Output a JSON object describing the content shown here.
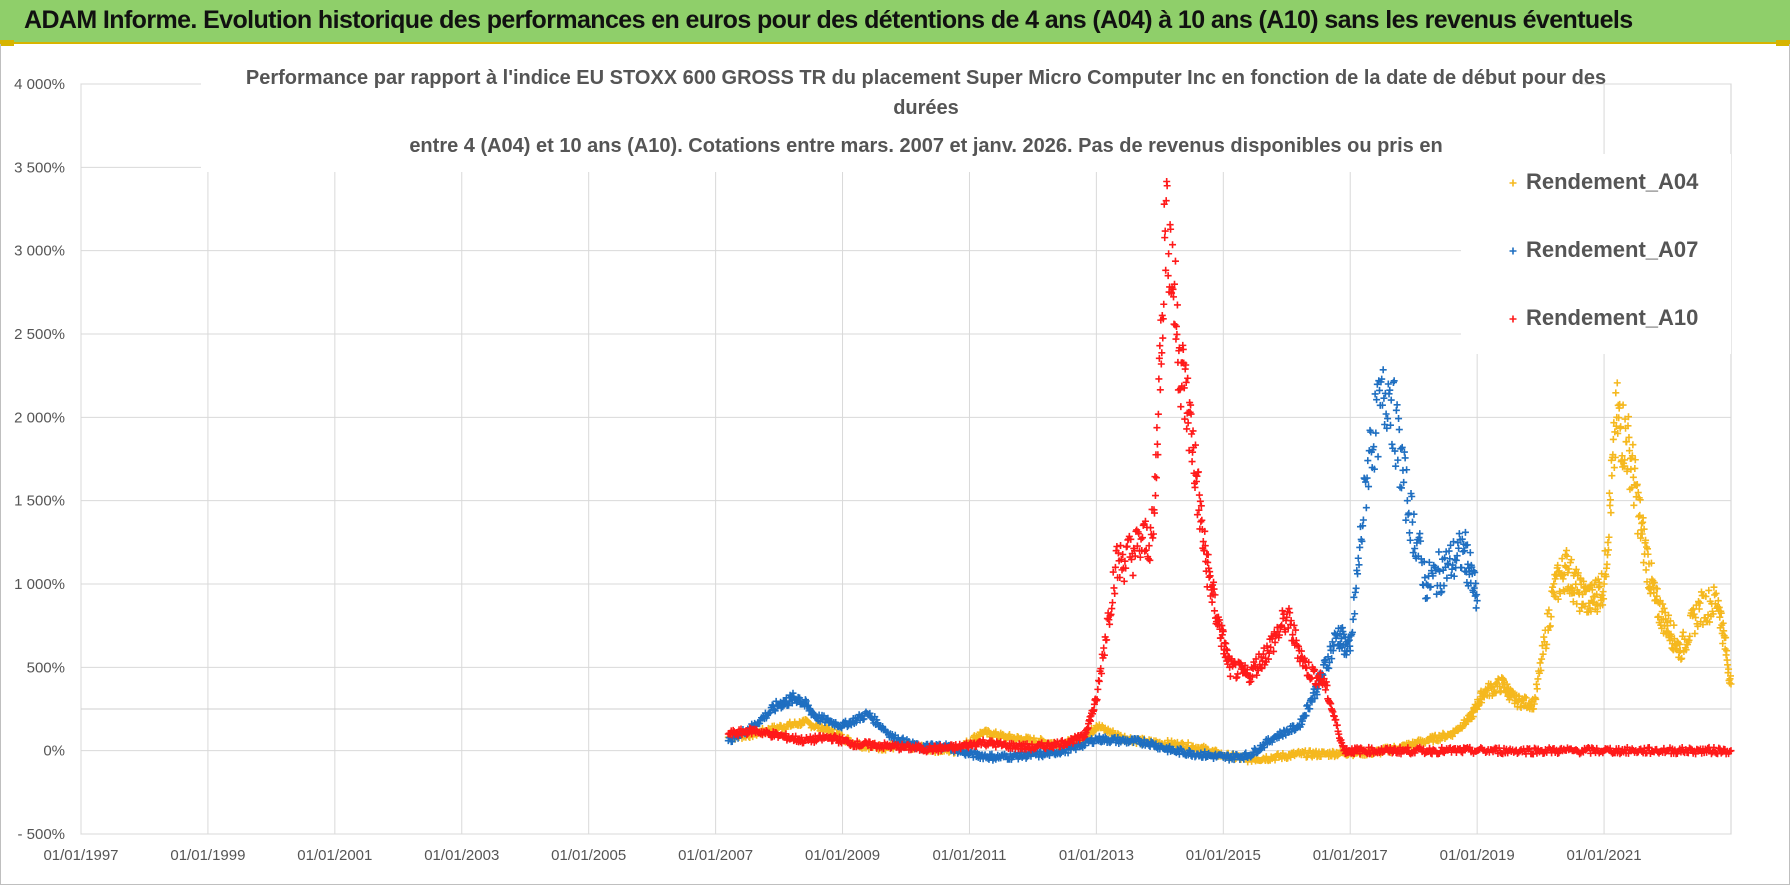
{
  "header": {
    "title": "ADAM Informe. Evolution historique des performances en euros pour des détentions de 4 ans (A04) à 10 ans (A10) sans les revenus éventuels"
  },
  "chart_data": {
    "type": "scatter",
    "title_lines": [
      "Performance par rapport à l'indice EU STOXX 600 GROSS TR  du placement Super Micro Computer Inc en fonction de la date de début pour des",
      "durées",
      "entre 4 (A04) et 10 ans (A10).  Cotations entre mars. 2007 et janv. 2026.  Pas de revenus disponibles ou pris en"
    ],
    "xlabel": "",
    "ylabel": "",
    "x_range": [
      1997.0,
      2023.0
    ],
    "ylim": [
      -500,
      4000
    ],
    "y_ticks": [
      -500,
      0,
      500,
      1000,
      1500,
      2000,
      2500,
      3000,
      3500,
      4000
    ],
    "y_tick_labels": [
      "- 500%",
      "0%",
      "500%",
      "1 000%",
      "1 500%",
      "2 000%",
      "2 500%",
      "3 000%",
      "3 500%",
      "4 000%"
    ],
    "x_ticks": [
      1997,
      1999,
      2001,
      2003,
      2005,
      2007,
      2009,
      2011,
      2013,
      2015,
      2017,
      2019,
      2021
    ],
    "x_tick_labels": [
      "01/01/1997",
      "01/01/1999",
      "01/01/2001",
      "01/01/2003",
      "01/01/2005",
      "01/01/2007",
      "01/01/2009",
      "01/01/2011",
      "01/01/2013",
      "01/01/2015",
      "01/01/2017",
      "01/01/2019",
      "01/01/2021"
    ],
    "grid": true,
    "legend_position": "top-right",
    "marker": "+",
    "series": [
      {
        "name": "Rendement_A04",
        "color": "#f5b81e",
        "x": [
          2007.2,
          2007.6,
          2008.0,
          2008.4,
          2008.8,
          2009.2,
          2009.6,
          2010.0,
          2010.4,
          2010.8,
          2011.2,
          2011.6,
          2012.0,
          2012.4,
          2012.8,
          2013.0,
          2013.4,
          2013.8,
          2014.2,
          2014.6,
          2015.0,
          2015.4,
          2015.8,
          2016.2,
          2016.6,
          2017.0,
          2017.4,
          2017.8,
          2018.2,
          2018.6,
          2018.9,
          2019.1,
          2019.4,
          2019.6,
          2019.9,
          2020.2,
          2020.4,
          2020.6,
          2020.8,
          2021.0,
          2021.2,
          2021.4,
          2021.6,
          2021.8,
          2022.0,
          2022.2,
          2022.5,
          2022.8,
          2023.0
        ],
        "values": [
          80,
          100,
          140,
          170,
          120,
          40,
          20,
          30,
          10,
          0,
          110,
          80,
          60,
          40,
          60,
          150,
          80,
          50,
          40,
          20,
          -30,
          -50,
          -40,
          -20,
          -20,
          -10,
          -10,
          20,
          60,
          100,
          200,
          350,
          400,
          300,
          280,
          950,
          1100,
          950,
          900,
          1000,
          2000,
          1800,
          1300,
          900,
          750,
          600,
          850,
          900,
          400
        ]
      },
      {
        "name": "Rendement_A07",
        "color": "#1f6fc1",
        "x": [
          2007.2,
          2007.6,
          2008.0,
          2008.3,
          2008.6,
          2009.0,
          2009.4,
          2009.8,
          2010.2,
          2010.6,
          2011.0,
          2011.4,
          2011.8,
          2012.2,
          2012.6,
          2013.0,
          2013.4,
          2013.8,
          2014.2,
          2014.6,
          2015.0,
          2015.4,
          2015.8,
          2016.2,
          2016.5,
          2016.8,
          2017.0,
          2017.3,
          2017.6,
          2017.9,
          2018.2,
          2018.5,
          2018.8,
          2019.0
        ],
        "values": [
          60,
          150,
          280,
          320,
          200,
          150,
          220,
          80,
          20,
          30,
          -20,
          -40,
          -30,
          -20,
          10,
          70,
          60,
          50,
          0,
          -20,
          -40,
          -30,
          80,
          150,
          400,
          700,
          600,
          1800,
          2200,
          1500,
          1000,
          1100,
          1200,
          900
        ]
      },
      {
        "name": "Rendement_A10",
        "color": "#ff1a1a",
        "x": [
          2007.2,
          2007.6,
          2008.0,
          2008.4,
          2008.8,
          2009.2,
          2009.6,
          2010.0,
          2010.4,
          2010.8,
          2011.2,
          2011.6,
          2012.0,
          2012.4,
          2012.8,
          2013.0,
          2013.3,
          2013.6,
          2013.9,
          2014.1,
          2014.3,
          2014.5,
          2014.7,
          2014.9,
          2015.1,
          2015.4,
          2015.7,
          2016.0,
          2016.3,
          2016.6,
          2016.9,
          2017.2,
          2017.6,
          2018.0,
          2018.5,
          2019.0,
          2019.5,
          2020.0,
          2020.5,
          2021.0,
          2021.5,
          2022.0,
          2022.5,
          2023.0
        ],
        "values": [
          100,
          120,
          90,
          60,
          80,
          40,
          30,
          20,
          10,
          20,
          50,
          30,
          20,
          40,
          80,
          300,
          1100,
          1200,
          1300,
          3300,
          2400,
          1900,
          1200,
          800,
          500,
          450,
          600,
          800,
          500,
          400,
          0,
          0,
          0,
          0,
          0,
          0,
          0,
          0,
          0,
          0,
          0,
          0,
          0,
          0
        ]
      }
    ]
  }
}
